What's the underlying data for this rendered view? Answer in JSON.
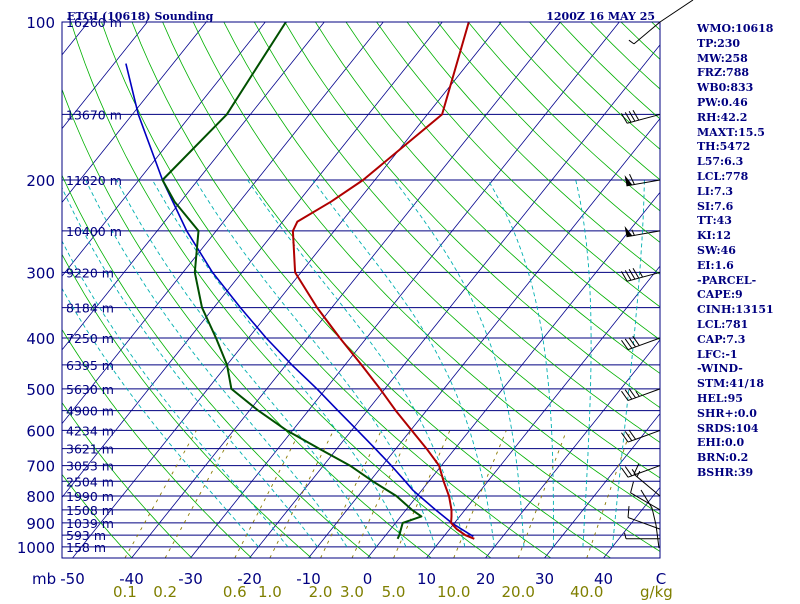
{
  "chart_data": {
    "type": "line",
    "title_left": "ETGI (10618) Sounding",
    "title_right": "1200Z 16 MAY 25",
    "pressure_axis_unit": "mb",
    "pressure_levels": [
      100,
      200,
      300,
      400,
      500,
      600,
      700,
      800,
      900,
      1000
    ],
    "height_labels": [
      {
        "p": 100,
        "label": "16260 m"
      },
      {
        "p": 150,
        "label": "13670 m"
      },
      {
        "p": 200,
        "label": "11820 m"
      },
      {
        "p": 250,
        "label": "10400 m"
      },
      {
        "p": 300,
        "label": "9220 m"
      },
      {
        "p": 350,
        "label": "8184 m"
      },
      {
        "p": 400,
        "label": "7250 m"
      },
      {
        "p": 450,
        "label": "6395 m"
      },
      {
        "p": 500,
        "label": "5630 m"
      },
      {
        "p": 550,
        "label": "4900 m"
      },
      {
        "p": 600,
        "label": "4234 m"
      },
      {
        "p": 650,
        "label": "3621 m"
      },
      {
        "p": 700,
        "label": "3053 m"
      },
      {
        "p": 750,
        "label": "2504 m"
      },
      {
        "p": 800,
        "label": "1990 m"
      },
      {
        "p": 850,
        "label": "1508 m"
      },
      {
        "p": 900,
        "label": "1039 m"
      },
      {
        "p": 950,
        "label": "593 m"
      },
      {
        "p": 1000,
        "label": "158 m"
      }
    ],
    "temperature_ticks": [
      -50,
      -40,
      -30,
      -20,
      -10,
      0,
      10,
      20,
      30,
      40
    ],
    "temperature_unit": "C",
    "mixing_ratio_unit": "g/kg",
    "mixing_ratio_labels": [
      "0.1",
      "0.2",
      "0.6",
      "1.0",
      "2.0",
      "3.0",
      "5.0",
      "10.0",
      "20.0",
      "40.0"
    ],
    "mixing_ratio_values": [
      0.1,
      0.2,
      0.6,
      1.0,
      2.0,
      3.0,
      5.0,
      10.0,
      20.0,
      40.0
    ],
    "temperature_profile": [
      {
        "p": 965,
        "t": 15.5
      },
      {
        "p": 950,
        "t": 13.5
      },
      {
        "p": 925,
        "t": 11.2
      },
      {
        "p": 900,
        "t": 9.4
      },
      {
        "p": 875,
        "t": 8.6
      },
      {
        "p": 850,
        "t": 7.7
      },
      {
        "p": 800,
        "t": 5.4
      },
      {
        "p": 750,
        "t": 2.5
      },
      {
        "p": 700,
        "t": -0.4
      },
      {
        "p": 650,
        "t": -4.8
      },
      {
        "p": 600,
        "t": -9.8
      },
      {
        "p": 550,
        "t": -15.2
      },
      {
        "p": 500,
        "t": -20.8
      },
      {
        "p": 450,
        "t": -27.2
      },
      {
        "p": 400,
        "t": -34.5
      },
      {
        "p": 350,
        "t": -42.5
      },
      {
        "p": 300,
        "t": -51.0
      },
      {
        "p": 250,
        "t": -57.0
      },
      {
        "p": 240,
        "t": -57.5
      },
      {
        "p": 220,
        "t": -54.5
      },
      {
        "p": 200,
        "t": -52.0
      },
      {
        "p": 150,
        "t": -47.5
      },
      {
        "p": 100,
        "t": -55.5
      }
    ],
    "dewpoint_profile": [
      {
        "p": 965,
        "t": 2.5
      },
      {
        "p": 950,
        "t": 2.3
      },
      {
        "p": 900,
        "t": 1.2
      },
      {
        "p": 875,
        "t": 3.5
      },
      {
        "p": 850,
        "t": 1.0
      },
      {
        "p": 800,
        "t": -3.5
      },
      {
        "p": 750,
        "t": -9.5
      },
      {
        "p": 700,
        "t": -15.5
      },
      {
        "p": 650,
        "t": -23.0
      },
      {
        "p": 600,
        "t": -31.0
      },
      {
        "p": 550,
        "t": -38.5
      },
      {
        "p": 500,
        "t": -46.0
      },
      {
        "p": 450,
        "t": -50.0
      },
      {
        "p": 400,
        "t": -55.5
      },
      {
        "p": 350,
        "t": -62.0
      },
      {
        "p": 300,
        "t": -68.0
      },
      {
        "p": 250,
        "t": -73.0
      },
      {
        "p": 220,
        "t": -81.0
      },
      {
        "p": 200,
        "t": -86.0
      },
      {
        "p": 150,
        "t": -84.0
      },
      {
        "p": 100,
        "t": -86.5
      }
    ],
    "parcel_profile": [
      {
        "p": 955,
        "t": 15.0
      },
      {
        "p": 925,
        "t": 12.0
      },
      {
        "p": 900,
        "t": 9.5
      },
      {
        "p": 850,
        "t": 5.0
      },
      {
        "p": 800,
        "t": 0.4
      },
      {
        "p": 780,
        "t": -1.5
      },
      {
        "p": 750,
        "t": -4.0
      },
      {
        "p": 700,
        "t": -8.5
      },
      {
        "p": 650,
        "t": -13.5
      },
      {
        "p": 600,
        "t": -19.0
      },
      {
        "p": 550,
        "t": -25.0
      },
      {
        "p": 500,
        "t": -31.5
      },
      {
        "p": 450,
        "t": -39.0
      },
      {
        "p": 400,
        "t": -47.0
      },
      {
        "p": 350,
        "t": -55.5
      },
      {
        "p": 300,
        "t": -65.0
      },
      {
        "p": 250,
        "t": -75.0
      },
      {
        "p": 200,
        "t": -86.0
      },
      {
        "p": 150,
        "t": -99.0
      },
      {
        "p": 120,
        "t": -108.0
      }
    ],
    "wind_barbs": [
      {
        "p": 965,
        "dir": 270,
        "spd": 5
      },
      {
        "p": 925,
        "dir": 290,
        "spd": 10
      },
      {
        "p": 850,
        "dir": 300,
        "spd": 10
      },
      {
        "p": 800,
        "dir": 310,
        "spd": 15
      },
      {
        "p": 700,
        "dir": 250,
        "spd": 25
      },
      {
        "p": 600,
        "dir": 250,
        "spd": 30
      },
      {
        "p": 500,
        "dir": 250,
        "spd": 35
      },
      {
        "p": 400,
        "dir": 250,
        "spd": 40
      },
      {
        "p": 300,
        "dir": 255,
        "spd": 45
      },
      {
        "p": 250,
        "dir": 260,
        "spd": 55
      },
      {
        "p": 200,
        "dir": 260,
        "spd": 60
      },
      {
        "p": 150,
        "dir": 255,
        "spd": 40
      },
      {
        "p": 100,
        "dir": 230,
        "spd": 5
      }
    ],
    "indices": [
      "WMO:10618",
      "TP:230",
      "MW:258",
      "FRZ:788",
      "WB0:833",
      "PW:0.46",
      "RH:42.2",
      "MAXT:15.5",
      "TH:5472",
      "L57:6.3",
      "LCL:778",
      "LI:7.3",
      "SI:7.6",
      "TT:43",
      "KI:12",
      "SW:46",
      "EI:1.6",
      "-PARCEL-",
      "CAPE:9",
      "CINH:13151",
      "LCL:781",
      "CAP:7.3",
      "LFC:-1",
      "-WIND-",
      "STM:41/18",
      "HEL:95",
      "SHR+:0.0",
      "SRDS:104",
      "EHI:0.0",
      "BRN:0.2",
      "BSHR:39"
    ],
    "colors": {
      "isobar": "#000080",
      "isotherm": "#00008b",
      "dry_adiabat": "#00b000",
      "moist_adiabat": "#00b0b0",
      "mixing_ratio": "#8a7a00",
      "temperature": "#b00000",
      "dewpoint": "#005000",
      "parcel": "#0000c0",
      "text": "#000080",
      "mixing_label": "#7f7f00"
    }
  }
}
